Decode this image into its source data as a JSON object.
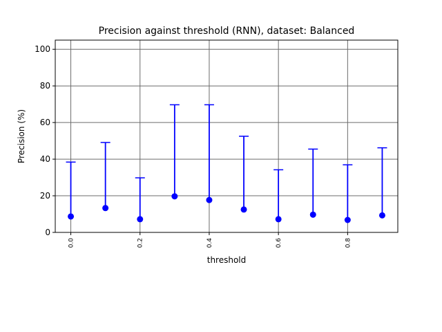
{
  "chart_data": {
    "type": "scatter",
    "title": "Precision against threshold (RNN), dataset: Balanced",
    "xlabel": "threshold",
    "ylabel": "Precision (%)",
    "xlim": [
      -0.045,
      0.945
    ],
    "ylim": [
      0,
      105
    ],
    "grid": true,
    "x_tick_labels": [
      "0.0",
      "0.2",
      "0.4",
      "0.6",
      "0.8"
    ],
    "x_tick_values": [
      0.0,
      0.2,
      0.4,
      0.6,
      0.8
    ],
    "y_tick_labels": [
      "0",
      "20",
      "40",
      "60",
      "80",
      "100"
    ],
    "y_tick_values": [
      0,
      20,
      40,
      60,
      80,
      100
    ],
    "series": [
      {
        "x": [
          0.0,
          0.1,
          0.2,
          0.3,
          0.4,
          0.5,
          0.6,
          0.7,
          0.8,
          0.9
        ],
        "y": [
          8.7,
          13.3,
          7.2,
          19.7,
          17.7,
          12.5,
          7.2,
          9.7,
          6.8,
          9.3
        ],
        "err_low": [
          0,
          0,
          0,
          0,
          0,
          0,
          0,
          0,
          0,
          0
        ],
        "err_high": [
          29.7,
          35.8,
          22.6,
          50.0,
          52.0,
          40.0,
          27.0,
          35.8,
          30.1,
          36.9
        ],
        "color": "#0000ff"
      }
    ]
  },
  "colors": {
    "series": "#0000ff",
    "grid": "#6b6b6b",
    "axes": "#000000"
  }
}
